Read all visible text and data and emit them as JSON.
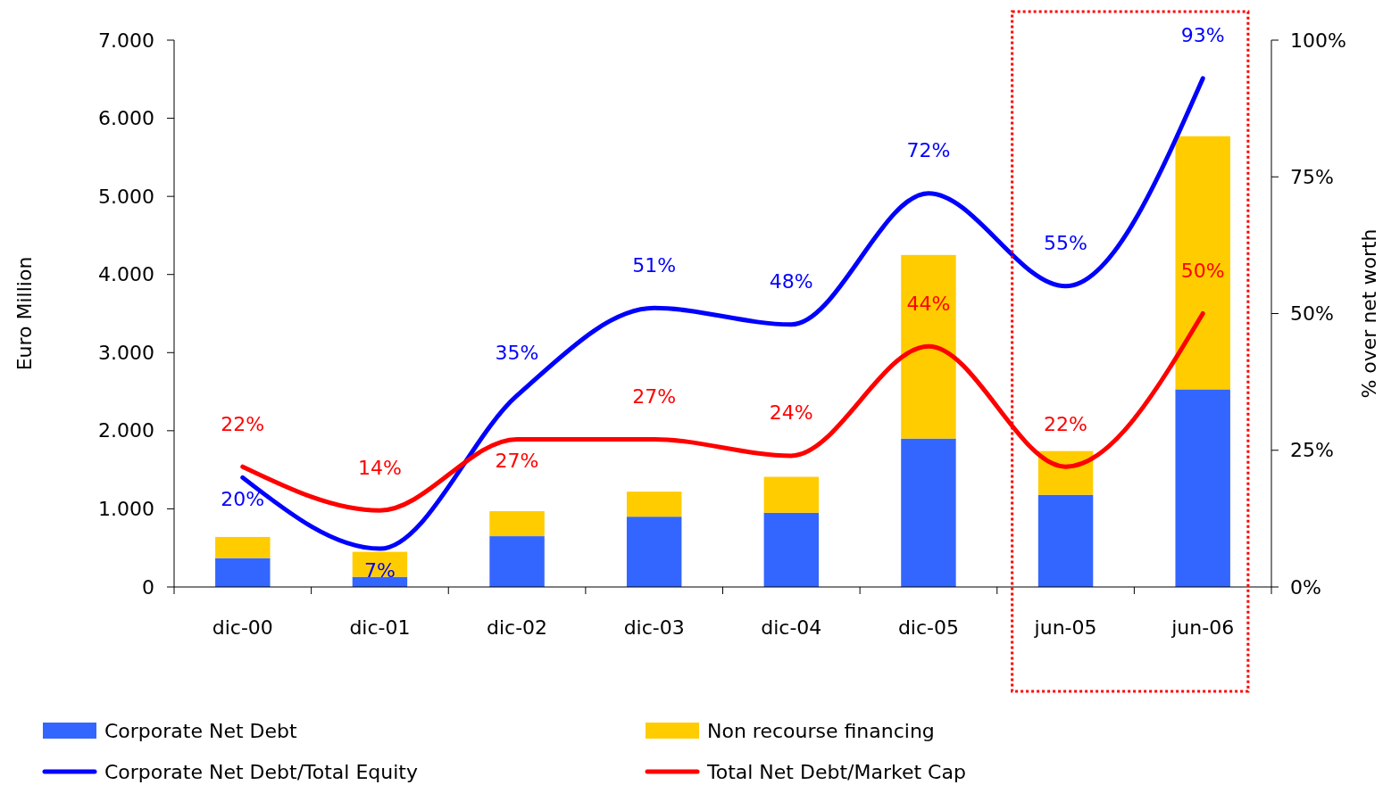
{
  "chart_data": {
    "type": "bar",
    "stacked": true,
    "categories": [
      "dic-00",
      "dic-01",
      "dic-02",
      "dic-03",
      "dic-04",
      "dic-05",
      "jun-05",
      "jun-06"
    ],
    "series": [
      {
        "name": "Corporate Net Debt",
        "color": "#3366ff",
        "values": [
          370,
          130,
          650,
          900,
          950,
          1900,
          1180,
          2530
        ]
      },
      {
        "name": "Non recourse financing",
        "color": "#ffcc00",
        "values": [
          270,
          320,
          320,
          320,
          460,
          2350,
          560,
          3240
        ]
      },
      {
        "name": "Corporate Net Debt/Total Equity",
        "type": "line",
        "axis": "y2",
        "color": "#0000ff",
        "values": [
          20,
          7,
          35,
          51,
          48,
          72,
          55,
          93
        ],
        "value_labels": [
          "20%",
          "7%",
          "35%",
          "51%",
          "48%",
          "72%",
          "55%",
          "93%"
        ]
      },
      {
        "name": "Total Net Debt/Market Cap",
        "type": "line",
        "axis": "y2",
        "color": "#ff0000",
        "values": [
          22,
          14,
          27,
          27,
          24,
          44,
          22,
          50
        ],
        "value_labels": [
          "22%",
          "14%",
          "27%",
          "27%",
          "24%",
          "44%",
          "22%",
          "50%"
        ]
      }
    ],
    "ylim": [
      0,
      7000
    ],
    "yticks": [
      0,
      {
        "value": 1000,
        "label": "1.000"
      },
      {
        "value": 2000,
        "label": "2.000"
      },
      {
        "value": 3000,
        "label": "3.000"
      },
      {
        "value": 4000,
        "label": "4.000"
      },
      {
        "value": 5000,
        "label": "5.000"
      },
      {
        "value": 6000,
        "label": "6.000"
      },
      {
        "value": 7000,
        "label": "7.000"
      }
    ],
    "y2lim": [
      0,
      100
    ],
    "y2ticks": [
      {
        "value": 0,
        "label": "0%"
      },
      {
        "value": 25,
        "label": "25%"
      },
      {
        "value": 50,
        "label": "50%"
      },
      {
        "value": 75,
        "label": "75%"
      },
      {
        "value": 100,
        "label": "100%"
      }
    ],
    "ylabel": "Euro Million",
    "y2label": "% over net worth",
    "legend": "bottom"
  }
}
